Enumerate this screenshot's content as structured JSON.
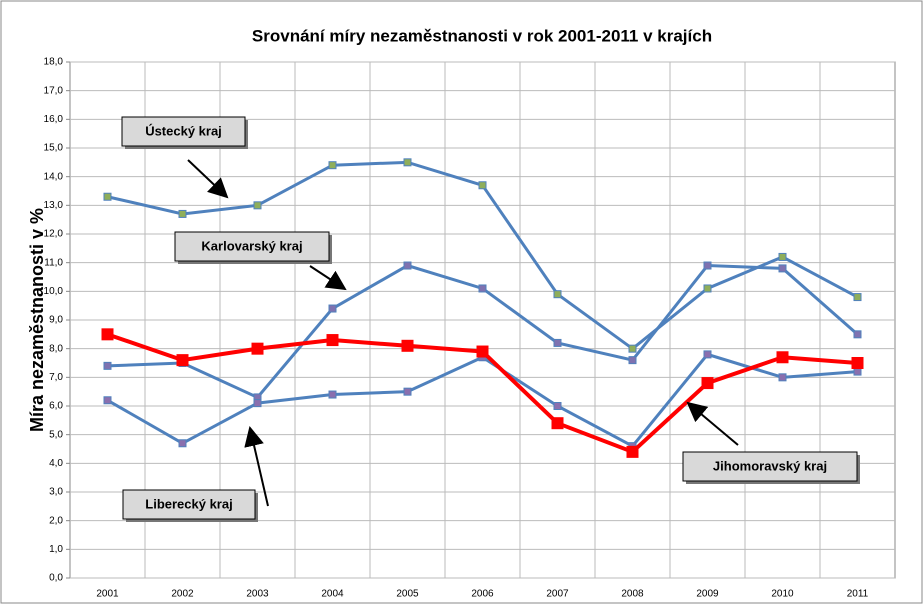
{
  "chart_data": {
    "type": "line",
    "title": "Srovnání míry nezaměstnanosti v rok 2001-2011 v krajích",
    "y_label": "Míra nezaměstnanosti v %",
    "categories": [
      "2001",
      "2002",
      "2003",
      "2004",
      "2005",
      "2006",
      "2007",
      "2008",
      "2009",
      "2010",
      "2011"
    ],
    "series": [
      {
        "name": "Ústecký kraj",
        "color": "#4f81bd",
        "marker_color": "#8fae5a",
        "values": [
          13.3,
          12.7,
          13.0,
          14.4,
          14.5,
          13.7,
          9.9,
          8.0,
          10.1,
          11.2,
          9.8
        ]
      },
      {
        "name": "Karlovarský kraj",
        "color": "#4f81bd",
        "marker_color": "#7f72b0",
        "values": [
          7.4,
          7.5,
          6.3,
          9.4,
          10.9,
          10.1,
          8.2,
          7.6,
          10.9,
          10.8,
          8.5
        ]
      },
      {
        "name": "Liberecký kraj",
        "color": "#4f81bd",
        "marker_color": "#8a6fae",
        "values": [
          6.2,
          4.7,
          6.1,
          6.4,
          6.5,
          7.7,
          6.0,
          4.6,
          7.8,
          7.0,
          7.2
        ]
      },
      {
        "name": "Jihomoravský kraj",
        "color": "#ff0000",
        "marker_color": "#ff0000",
        "values": [
          8.5,
          7.6,
          8.0,
          8.3,
          8.1,
          7.9,
          5.4,
          4.4,
          6.8,
          7.7,
          7.5
        ]
      }
    ],
    "ylim": [
      0,
      18
    ],
    "yticks": [
      {
        "value": 0,
        "label": "0,0"
      },
      {
        "value": 1,
        "label": "1,0"
      },
      {
        "value": 2,
        "label": "2,0"
      },
      {
        "value": 3,
        "label": "3,0"
      },
      {
        "value": 4,
        "label": "4,0"
      },
      {
        "value": 5,
        "label": "5,0"
      },
      {
        "value": 6,
        "label": "6,0"
      },
      {
        "value": 7,
        "label": "7,0"
      },
      {
        "value": 8,
        "label": "8,0"
      },
      {
        "value": 9,
        "label": "9,0"
      },
      {
        "value": 10,
        "label": "10,0"
      },
      {
        "value": 11,
        "label": "11,0"
      },
      {
        "value": 12,
        "label": "12,0"
      },
      {
        "value": 13,
        "label": "13,0"
      },
      {
        "value": 14,
        "label": "14,0"
      },
      {
        "value": 15,
        "label": "15,0"
      },
      {
        "value": 16,
        "label": "16,0"
      },
      {
        "value": 17,
        "label": "17,0"
      },
      {
        "value": 18,
        "label": "18,0"
      }
    ],
    "grid": true
  }
}
